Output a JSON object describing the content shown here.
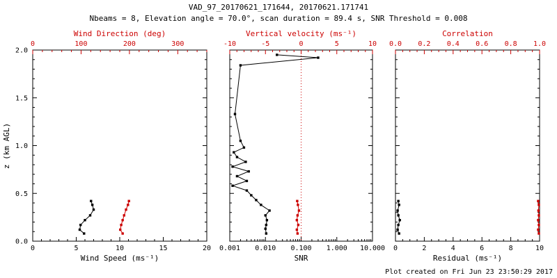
{
  "header": {
    "title": "VAD_97_20170621_171644, 20170621.171741",
    "subtitle": "Nbeams = 8, Elevation angle = 70.0°, scan duration = 89.4 s, SNR Threshold = 0.008"
  },
  "footer": {
    "created": "Plot created on Fri Jun 23 23:50:29 2017"
  },
  "colors": {
    "black": "#000000",
    "red": "#cc0000"
  },
  "chart_data": {
    "type": "line",
    "yaxis": {
      "label": "z (km AGL)",
      "lim": [
        0,
        2
      ],
      "ticks": [
        0,
        0.5,
        1.0,
        1.5,
        2.0
      ],
      "tick_labels": [
        "0.0",
        "0.5",
        "1.0",
        "1.5",
        "2.0"
      ],
      "minor_div": 5
    },
    "panels": [
      {
        "bottom_axis": {
          "label": "Wind Speed (ms⁻¹)",
          "scale": "linear",
          "lim": [
            0,
            20
          ],
          "ticks": [
            0,
            5,
            10,
            15,
            20
          ],
          "tick_labels": [
            "0",
            "5",
            "10",
            "15",
            "20"
          ],
          "minor_div": 5
        },
        "top_axis": {
          "label": "Wind Direction (deg)",
          "scale": "linear",
          "lim": [
            0,
            360
          ],
          "ticks": [
            0,
            100,
            200,
            300
          ],
          "tick_labels": [
            "0",
            "100",
            "200",
            "300"
          ],
          "minor_div": 5
        },
        "series": [
          {
            "name": "wind-speed",
            "color": "black",
            "axis": "bottom",
            "points": [
              [
                5.9,
                0.08
              ],
              [
                5.4,
                0.12
              ],
              [
                5.5,
                0.17
              ],
              [
                6.0,
                0.22
              ],
              [
                6.6,
                0.27
              ],
              [
                7.0,
                0.33
              ],
              [
                6.85,
                0.38
              ],
              [
                6.7,
                0.42
              ]
            ]
          },
          {
            "name": "wind-direction",
            "color": "red",
            "axis": "top",
            "points": [
              [
                186,
                0.08
              ],
              [
                181,
                0.12
              ],
              [
                183,
                0.17
              ],
              [
                186,
                0.22
              ],
              [
                189,
                0.27
              ],
              [
                193,
                0.33
              ],
              [
                197,
                0.38
              ],
              [
                199,
                0.42
              ]
            ]
          }
        ]
      },
      {
        "bottom_axis": {
          "label": "SNR",
          "scale": "log",
          "lim": [
            0.001,
            10
          ],
          "ticks": [
            0.001,
            0.01,
            0.1,
            1,
            10
          ],
          "tick_labels": [
            "0.001",
            "0.010",
            "0.100",
            "1.000",
            "10.000"
          ]
        },
        "top_axis": {
          "label": "Vertical velocity (ms⁻¹)",
          "scale": "linear",
          "lim": [
            -10,
            10
          ],
          "ticks": [
            -10,
            -5,
            0,
            5,
            10
          ],
          "tick_labels": [
            "-10",
            "-5",
            "0",
            "5",
            "10"
          ],
          "minor_div": 5
        },
        "reference_line": {
          "axis": "top",
          "value": 0,
          "color": "red",
          "style": "dotted"
        },
        "series": [
          {
            "name": "snr",
            "color": "black",
            "axis": "bottom",
            "points": [
              [
                0.0105,
                0.08
              ],
              [
                0.01,
                0.13
              ],
              [
                0.0105,
                0.17
              ],
              [
                0.011,
                0.22
              ],
              [
                0.01,
                0.27
              ],
              [
                0.013,
                0.32
              ],
              [
                0.0075,
                0.38
              ],
              [
                0.0055,
                0.43
              ],
              [
                0.004,
                0.48
              ],
              [
                0.003,
                0.53
              ],
              [
                0.0012,
                0.58
              ],
              [
                0.003,
                0.63
              ],
              [
                0.0016,
                0.68
              ],
              [
                0.0034,
                0.73
              ],
              [
                0.0012,
                0.78
              ],
              [
                0.0028,
                0.83
              ],
              [
                0.0016,
                0.88
              ],
              [
                0.0013,
                0.93
              ],
              [
                0.0025,
                0.98
              ],
              [
                0.002,
                1.05
              ],
              [
                0.0014,
                1.33
              ],
              [
                0.002,
                1.84
              ],
              [
                0.3,
                1.92
              ],
              [
                0.021,
                1.95
              ]
            ]
          },
          {
            "name": "vertical-velocity",
            "color": "red",
            "axis": "top",
            "points": [
              [
                -0.5,
                0.08
              ],
              [
                -0.6,
                0.12
              ],
              [
                -0.4,
                0.17
              ],
              [
                -0.6,
                0.22
              ],
              [
                -0.5,
                0.27
              ],
              [
                -0.3,
                0.32
              ],
              [
                -0.45,
                0.38
              ],
              [
                -0.55,
                0.42
              ]
            ]
          }
        ]
      },
      {
        "bottom_axis": {
          "label": "Residual (ms⁻¹)",
          "scale": "linear",
          "lim": [
            0,
            10
          ],
          "ticks": [
            0,
            2,
            4,
            6,
            8,
            10
          ],
          "tick_labels": [
            "0",
            "2",
            "4",
            "6",
            "8",
            "10"
          ],
          "minor_div": 4
        },
        "top_axis": {
          "label": "Correlation",
          "scale": "linear",
          "lim": [
            0,
            1
          ],
          "ticks": [
            0,
            0.2,
            0.4,
            0.6,
            0.8,
            1.0
          ],
          "tick_labels": [
            "0.0",
            "0.2",
            "0.4",
            "0.6",
            "0.8",
            "1.0"
          ],
          "minor_div": 4
        },
        "series": [
          {
            "name": "residual",
            "color": "black",
            "axis": "bottom",
            "points": [
              [
                0.25,
                0.08
              ],
              [
                0.15,
                0.12
              ],
              [
                0.2,
                0.17
              ],
              [
                0.3,
                0.22
              ],
              [
                0.2,
                0.27
              ],
              [
                0.15,
                0.32
              ],
              [
                0.25,
                0.38
              ],
              [
                0.2,
                0.42
              ]
            ]
          },
          {
            "name": "correlation",
            "color": "red",
            "axis": "top",
            "points": [
              [
                0.995,
                0.08
              ],
              [
                0.99,
                0.12
              ],
              [
                0.995,
                0.17
              ],
              [
                0.99,
                0.22
              ],
              [
                0.995,
                0.27
              ],
              [
                0.992,
                0.32
              ],
              [
                0.995,
                0.38
              ],
              [
                0.99,
                0.42
              ]
            ]
          }
        ]
      }
    ]
  }
}
